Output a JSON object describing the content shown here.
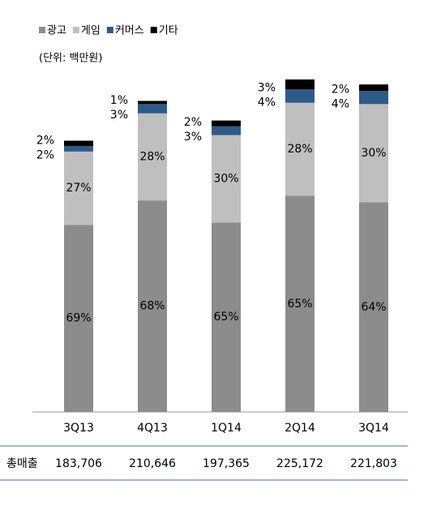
{
  "chart_data": {
    "type": "bar",
    "subtitle": "(단위: 백만원)",
    "categories": [
      "3Q13",
      "4Q13",
      "1Q14",
      "2Q14",
      "3Q14"
    ],
    "series": [
      {
        "name": "광고",
        "color": "#8c8c8c",
        "values": [
          69,
          68,
          65,
          65,
          64
        ],
        "value_labels": [
          "69%",
          "68%",
          "65%",
          "65%",
          "64%"
        ]
      },
      {
        "name": "게임",
        "color": "#bfbfbf",
        "values": [
          27,
          28,
          30,
          28,
          30
        ],
        "value_labels": [
          "27%",
          "28%",
          "30%",
          "28%",
          "30%"
        ]
      },
      {
        "name": "커머스",
        "color": "#2e5a8a",
        "values": [
          2,
          3,
          3,
          4,
          4
        ],
        "value_labels": [
          "2%",
          "3%",
          "3%",
          "4%",
          "4%"
        ]
      },
      {
        "name": "기타",
        "color": "#000000",
        "values": [
          2,
          1,
          2,
          3,
          2
        ],
        "value_labels": [
          "2%",
          "1%",
          "2%",
          "3%",
          "2%"
        ]
      }
    ],
    "totals_label": "총매출",
    "totals": [
      183706,
      210646,
      197365,
      225172,
      221803
    ],
    "total_labels": [
      "183,706",
      "210,646",
      "197,365",
      "225,172",
      "221,803"
    ]
  }
}
